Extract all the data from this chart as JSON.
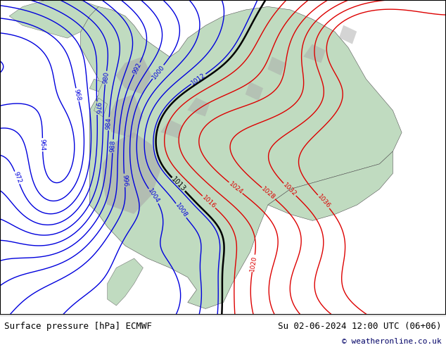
{
  "title_left": "Surface pressure [hPa] ECMWF",
  "title_right": "Su 02-06-2024 12:00 UTC (06+06)",
  "copyright": "© weatheronline.co.uk",
  "background_color": "#ffffff",
  "map_bg_color": "#d8edd8",
  "blue_contour_color": "#0000dd",
  "red_contour_color": "#dd0000",
  "black_contour_color": "#000000",
  "figsize": [
    6.34,
    4.9
  ],
  "dpi": 100,
  "bottom_bar_height": 0.088,
  "title_fontsize": 9,
  "copyright_fontsize": 8,
  "land_green": "#c0dbc0",
  "land_green2": "#a8cba8",
  "gray_mountain": "#aaaaaa",
  "ocean_color": "#d0e8d0"
}
